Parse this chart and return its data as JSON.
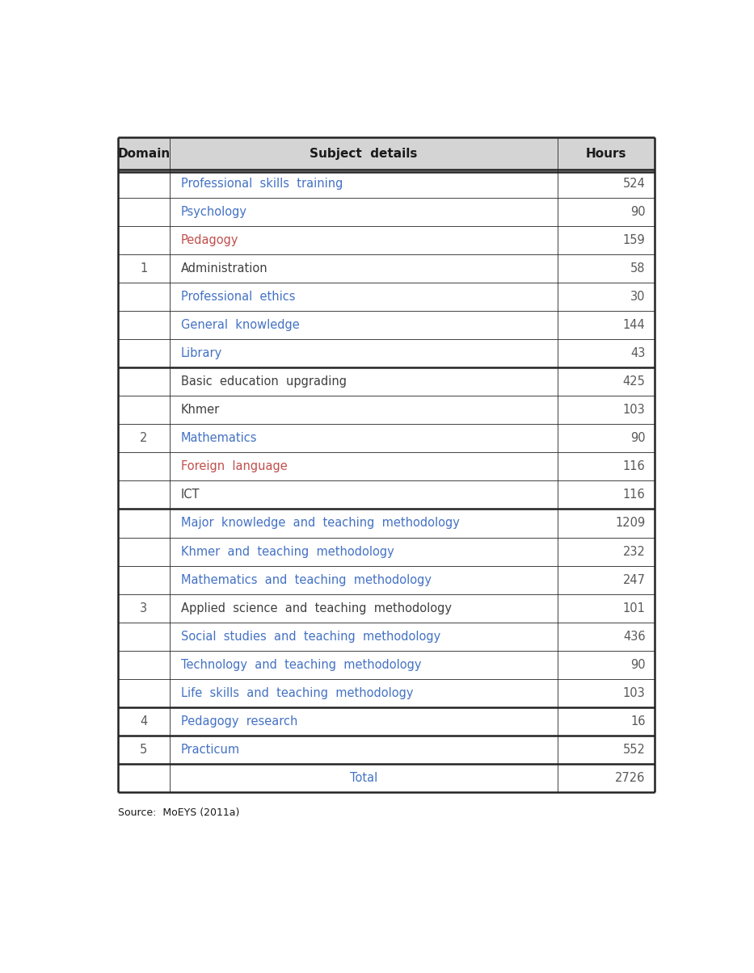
{
  "header": [
    "Domain",
    "Subject  details",
    "Hours"
  ],
  "rows": [
    {
      "domain": "",
      "subject": "Professional  skills  training",
      "hours": "524",
      "subject_color": "#4472c4",
      "hours_color": "#595959"
    },
    {
      "domain": "",
      "subject": "Psychology",
      "hours": "90",
      "subject_color": "#4472c4",
      "hours_color": "#595959"
    },
    {
      "domain": "",
      "subject": "Pedagogy",
      "hours": "159",
      "subject_color": "#c0504d",
      "hours_color": "#595959"
    },
    {
      "domain": "1",
      "subject": "Administration",
      "hours": "58",
      "subject_color": "#404040",
      "hours_color": "#595959"
    },
    {
      "domain": "",
      "subject": "Professional  ethics",
      "hours": "30",
      "subject_color": "#4472c4",
      "hours_color": "#595959"
    },
    {
      "domain": "",
      "subject": "General  knowledge",
      "hours": "144",
      "subject_color": "#4472c4",
      "hours_color": "#595959"
    },
    {
      "domain": "",
      "subject": "Library",
      "hours": "43",
      "subject_color": "#4472c4",
      "hours_color": "#595959"
    },
    {
      "domain": "",
      "subject": "Basic  education  upgrading",
      "hours": "425",
      "subject_color": "#404040",
      "hours_color": "#595959"
    },
    {
      "domain": "",
      "subject": "Khmer",
      "hours": "103",
      "subject_color": "#404040",
      "hours_color": "#595959"
    },
    {
      "domain": "2",
      "subject": "Mathematics",
      "hours": "90",
      "subject_color": "#4472c4",
      "hours_color": "#595959"
    },
    {
      "domain": "",
      "subject": "Foreign  language",
      "hours": "116",
      "subject_color": "#c0504d",
      "hours_color": "#595959"
    },
    {
      "domain": "",
      "subject": "ICT",
      "hours": "116",
      "subject_color": "#404040",
      "hours_color": "#595959"
    },
    {
      "domain": "",
      "subject": "Major  knowledge  and  teaching  methodology",
      "hours": "1209",
      "subject_color": "#4472c4",
      "hours_color": "#595959"
    },
    {
      "domain": "",
      "subject": "Khmer  and  teaching  methodology",
      "hours": "232",
      "subject_color": "#4472c4",
      "hours_color": "#595959"
    },
    {
      "domain": "",
      "subject": "Mathematics  and  teaching  methodology",
      "hours": "247",
      "subject_color": "#4472c4",
      "hours_color": "#595959"
    },
    {
      "domain": "3",
      "subject": "Applied  science  and  teaching  methodology",
      "hours": "101",
      "subject_color": "#404040",
      "hours_color": "#595959"
    },
    {
      "domain": "",
      "subject": "Social  studies  and  teaching  methodology",
      "hours": "436",
      "subject_color": "#4472c4",
      "hours_color": "#595959"
    },
    {
      "domain": "",
      "subject": "Technology  and  teaching  methodology",
      "hours": "90",
      "subject_color": "#4472c4",
      "hours_color": "#595959"
    },
    {
      "domain": "",
      "subject": "Life  skills  and  teaching  methodology",
      "hours": "103",
      "subject_color": "#4472c4",
      "hours_color": "#595959"
    },
    {
      "domain": "4",
      "subject": "Pedagogy  research",
      "hours": "16",
      "subject_color": "#4472c4",
      "hours_color": "#595959"
    },
    {
      "domain": "5",
      "subject": "Practicum",
      "hours": "552",
      "subject_color": "#4472c4",
      "hours_color": "#595959"
    },
    {
      "domain": "total_domain",
      "subject": "Total",
      "hours": "2726",
      "subject_color": "#4472c4",
      "hours_color": "#595959"
    }
  ],
  "domain_groups": {
    "1": {
      "start": 0,
      "end": 6
    },
    "2": {
      "start": 7,
      "end": 11
    },
    "3": {
      "start": 12,
      "end": 18
    },
    "4": {
      "start": 19,
      "end": 19
    },
    "5": {
      "start": 20,
      "end": 20
    }
  },
  "thick_border_after_rows": [
    6,
    11,
    18,
    19,
    20,
    21
  ],
  "header_bg": "#d4d4d4",
  "body_bg": "#ffffff",
  "source_text": "Source:  MoEYS (2011a)",
  "font_size": 10.5,
  "header_font_size": 11,
  "domain_font_size": 10.5
}
